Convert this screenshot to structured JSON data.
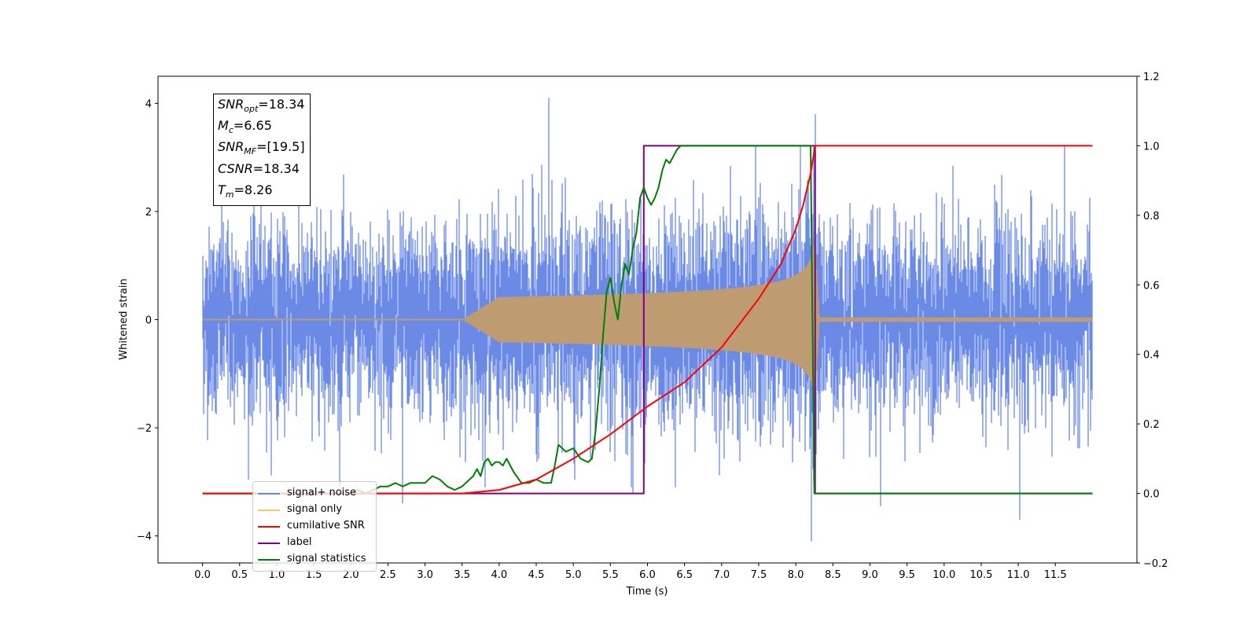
{
  "chart_data": {
    "type": "line",
    "xlabel": "Time (s)",
    "ylabel": "Whitened strain",
    "xlim": [
      -0.6,
      12.6
    ],
    "ylim": [
      -4.5,
      4.5
    ],
    "y2lim": [
      -0.2,
      1.2
    ],
    "x_ticks": [
      "0.0",
      "0.5",
      "1.0",
      "1.5",
      "2.0",
      "2.5",
      "3.0",
      "3.5",
      "4.0",
      "4.5",
      "5.0",
      "5.5",
      "6.0",
      "6.5",
      "7.0",
      "7.5",
      "8.0",
      "8.5",
      "9.0",
      "9.5",
      "10.0",
      "10.5",
      "11.0",
      "11.5"
    ],
    "y_ticks": [
      "4",
      "2",
      "0",
      "−2",
      "−4"
    ],
    "y2_ticks": [
      "1.2",
      "1.0",
      "0.8",
      "0.6",
      "0.4",
      "0.2",
      "0.0",
      "−0.2"
    ],
    "legend_location": "lower-left",
    "annotations": [
      {
        "sym": "SNR",
        "sub": "opt",
        "value": "=18.34"
      },
      {
        "sym": "M",
        "sub": "c",
        "value": "=6.65"
      },
      {
        "sym": "SNR",
        "sub": "MF",
        "value": "=[19.5]"
      },
      {
        "sym": "CSNR",
        "sub": "",
        "value": "=18.34"
      },
      {
        "sym": "T",
        "sub": "m",
        "value": "=8.26"
      }
    ],
    "series": [
      {
        "name": "signal+ noise",
        "color": "#6b8ae6",
        "axis": "left",
        "noise_std": 0.85,
        "range": [
          0,
          12
        ],
        "spikes": [
          [
            4.67,
            4.1
          ],
          [
            8.26,
            3.8
          ],
          [
            8.21,
            -4.1
          ],
          [
            5.8,
            -3.2
          ],
          [
            9.14,
            -3.45
          ],
          [
            11.02,
            -3.7
          ],
          [
            2.7,
            -3.4
          ]
        ]
      },
      {
        "name": "signal only",
        "color": "#f7c66a",
        "axis": "left",
        "chirp": {
          "start": 3.5,
          "merger": 8.26,
          "peak_amplitude": 1.6,
          "end_amplitude": 0.04
        }
      },
      {
        "name": "cumilative SNR",
        "color": "#ff0000",
        "axis": "right",
        "x": [
          0,
          3.5,
          4.0,
          4.5,
          5.0,
          5.5,
          6.0,
          6.5,
          7.0,
          7.5,
          7.8,
          8.0,
          8.1,
          8.2,
          8.26,
          12.0
        ],
        "y": [
          0.0,
          0.0,
          0.01,
          0.04,
          0.1,
          0.17,
          0.25,
          0.32,
          0.42,
          0.56,
          0.66,
          0.76,
          0.83,
          0.92,
          1.0,
          1.0
        ]
      },
      {
        "name": "label",
        "color": "#800080",
        "axis": "right",
        "x": [
          0,
          5.95,
          5.95,
          8.26,
          8.26,
          12.0
        ],
        "y": [
          0.0,
          0.0,
          1.0,
          1.0,
          0.0,
          0.0
        ]
      },
      {
        "name": "signal statistics",
        "color": "#008000",
        "axis": "right",
        "x": [
          0,
          2.0,
          2.1,
          2.2,
          2.3,
          2.4,
          2.5,
          2.6,
          2.7,
          2.8,
          2.9,
          3.0,
          3.1,
          3.2,
          3.3,
          3.4,
          3.5,
          3.6,
          3.65,
          3.7,
          3.75,
          3.8,
          3.85,
          3.9,
          3.95,
          4.0,
          4.05,
          4.1,
          4.2,
          4.3,
          4.4,
          4.5,
          4.6,
          4.7,
          4.75,
          4.8,
          4.9,
          5.0,
          5.1,
          5.2,
          5.25,
          5.3,
          5.35,
          5.4,
          5.45,
          5.5,
          5.55,
          5.6,
          5.65,
          5.7,
          5.75,
          5.8,
          5.85,
          5.9,
          5.95,
          6.0,
          6.05,
          6.1,
          6.15,
          6.2,
          6.25,
          6.3,
          6.35,
          6.4,
          6.45,
          6.5,
          6.6,
          6.7,
          6.8,
          7.0,
          7.5,
          8.0,
          8.2,
          8.25,
          8.3,
          12.0
        ],
        "y": [
          0.0,
          0.0,
          0.01,
          0.0,
          0.01,
          0.02,
          0.02,
          0.03,
          0.02,
          0.03,
          0.03,
          0.03,
          0.05,
          0.04,
          0.02,
          0.01,
          0.02,
          0.04,
          0.05,
          0.07,
          0.05,
          0.09,
          0.1,
          0.08,
          0.09,
          0.09,
          0.08,
          0.1,
          0.06,
          0.03,
          0.03,
          0.04,
          0.03,
          0.03,
          0.08,
          0.14,
          0.12,
          0.13,
          0.1,
          0.09,
          0.1,
          0.18,
          0.3,
          0.45,
          0.58,
          0.62,
          0.55,
          0.5,
          0.6,
          0.66,
          0.63,
          0.7,
          0.75,
          0.85,
          0.88,
          0.85,
          0.83,
          0.85,
          0.88,
          0.93,
          0.96,
          0.95,
          0.97,
          0.99,
          1.0,
          1.0,
          1.0,
          1.0,
          1.0,
          1.0,
          1.0,
          1.0,
          1.0,
          0.0,
          0.0,
          0.0
        ]
      }
    ]
  }
}
